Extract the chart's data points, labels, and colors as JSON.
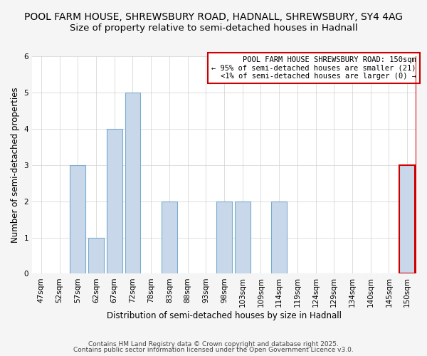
{
  "title_line1": "POOL FARM HOUSE, SHREWSBURY ROAD, HADNALL, SHREWSBURY, SY4 4AG",
  "title_line2": "Size of property relative to semi-detached houses in Hadnall",
  "xlabel": "Distribution of semi-detached houses by size in Hadnall",
  "ylabel": "Number of semi-detached properties",
  "categories": [
    "47sqm",
    "52sqm",
    "57sqm",
    "62sqm",
    "67sqm",
    "72sqm",
    "78sqm",
    "83sqm",
    "88sqm",
    "93sqm",
    "98sqm",
    "103sqm",
    "109sqm",
    "114sqm",
    "119sqm",
    "124sqm",
    "129sqm",
    "134sqm",
    "140sqm",
    "145sqm",
    "150sqm"
  ],
  "values": [
    0,
    0,
    3,
    1,
    4,
    5,
    0,
    2,
    0,
    0,
    2,
    2,
    0,
    2,
    0,
    0,
    0,
    0,
    0,
    0,
    3
  ],
  "bar_color": "#c8d8ea",
  "bar_edge_color": "#7aabcc",
  "highlight_index": 20,
  "highlight_edge_color": "#cc0000",
  "annotation_box_edge_color": "#cc0000",
  "annotation_text_line1": "POOL FARM HOUSE SHREWSBURY ROAD: 150sqm",
  "annotation_text_line2": "← 95% of semi-detached houses are smaller (21)",
  "annotation_text_line3": "<1% of semi-detached houses are larger (0) →",
  "ylim": [
    0,
    6
  ],
  "yticks": [
    0,
    1,
    2,
    3,
    4,
    5,
    6
  ],
  "footer_line1": "Contains HM Land Registry data © Crown copyright and database right 2025.",
  "footer_line2": "Contains public sector information licensed under the Open Government Licence v3.0.",
  "background_color": "#f5f5f5",
  "plot_background_color": "#ffffff",
  "grid_color": "#d0d0d0",
  "title_fontsize": 10,
  "subtitle_fontsize": 9.5,
  "label_fontsize": 8.5,
  "tick_fontsize": 7.5,
  "annotation_fontsize": 7.5,
  "footer_fontsize": 6.5
}
